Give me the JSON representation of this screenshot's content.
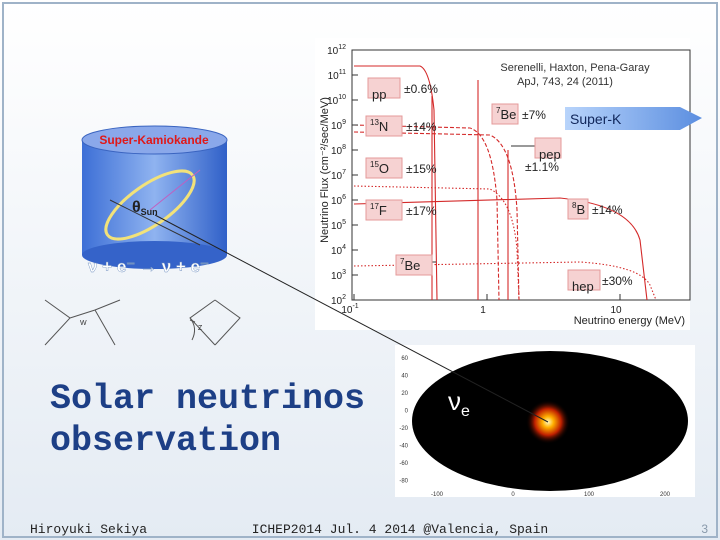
{
  "slide": {
    "title_lines": [
      "Solar neutrinos",
      "observation"
    ],
    "footer": {
      "author": "Hiroyuki Sekiya",
      "event": "ICHEP2014  Jul. 4 2014  @Valencia, Spain",
      "page": "3"
    },
    "detector": {
      "name": "Super-Kamiokande",
      "angle": "θ",
      "angle_sub": "Sun",
      "reaction": "ν + e⁻ → ν + e⁻"
    },
    "feynman": {
      "labels": [
        "W",
        "Z"
      ]
    },
    "spectrum": {
      "y_label": "Neutrino Flux (cm⁻²/sec/MeV)",
      "x_label": "Neutrino energy (MeV)",
      "y_ticks": [
        {
          "base": "10",
          "exp": "12"
        },
        {
          "base": "10",
          "exp": "11"
        },
        {
          "base": "10",
          "exp": "10"
        },
        {
          "base": "10",
          "exp": "9"
        },
        {
          "base": "10",
          "exp": "8"
        },
        {
          "base": "10",
          "exp": "7"
        },
        {
          "base": "10",
          "exp": "6"
        },
        {
          "base": "10",
          "exp": "5"
        },
        {
          "base": "10",
          "exp": "4"
        },
        {
          "base": "10",
          "exp": "3"
        },
        {
          "base": "10",
          "exp": "2"
        }
      ],
      "x_ticks": [
        {
          "base": "10",
          "exp": "-1"
        },
        {
          "base": "1",
          "exp": ""
        },
        {
          "base": "10",
          "exp": ""
        }
      ],
      "citation": [
        "Serenelli, Haxton, Pena-Garay",
        "ApJ, 743, 24 (2011)"
      ],
      "sources": [
        {
          "iso": "",
          "el": "pp",
          "unc": "±0.6%"
        },
        {
          "iso": "7",
          "el": "Be",
          "unc": "±7%"
        },
        {
          "iso": "13",
          "el": "N",
          "unc": "±14%"
        },
        {
          "iso": "",
          "el": "pep",
          "unc": "±1.1%"
        },
        {
          "iso": "15",
          "el": "O",
          "unc": "±15%"
        },
        {
          "iso": "17",
          "el": "F",
          "unc": "±17%"
        },
        {
          "iso": "8",
          "el": "B",
          "unc": "±14%"
        },
        {
          "iso": "7",
          "el": "Be",
          "unc": ""
        },
        {
          "iso": "",
          "el": "hep",
          "unc": "±30%"
        }
      ],
      "arrow": "Super-K"
    },
    "skymap": {
      "label": "ν",
      "label_sub": "e",
      "y_ticks": [
        "60",
        "40",
        "20",
        "0",
        "-20",
        "-40",
        "-60",
        "-80"
      ],
      "x_ticks": [
        "-100",
        "0",
        "100",
        "200"
      ]
    }
  }
}
